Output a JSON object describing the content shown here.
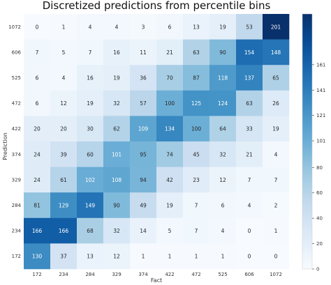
{
  "chart_data": {
    "type": "heatmap",
    "title": "Discretized predictions from percentile bins",
    "xlabel": "Fact",
    "ylabel": "Prediction",
    "x_categories": [
      "172",
      "234",
      "284",
      "329",
      "374",
      "422",
      "472",
      "525",
      "606",
      "1072"
    ],
    "y_categories": [
      "1072",
      "606",
      "525",
      "472",
      "422",
      "374",
      "329",
      "284",
      "234",
      "172"
    ],
    "values": [
      [
        0,
        1,
        4,
        4,
        3,
        6,
        13,
        19,
        53,
        201
      ],
      [
        7,
        5,
        7,
        16,
        11,
        21,
        63,
        90,
        154,
        148
      ],
      [
        6,
        4,
        16,
        19,
        36,
        70,
        87,
        118,
        137,
        65
      ],
      [
        6,
        12,
        19,
        32,
        57,
        100,
        125,
        124,
        63,
        26
      ],
      [
        20,
        20,
        30,
        62,
        109,
        134,
        100,
        64,
        33,
        19
      ],
      [
        24,
        39,
        60,
        101,
        95,
        74,
        45,
        32,
        21,
        4
      ],
      [
        24,
        61,
        102,
        108,
        94,
        42,
        23,
        12,
        7,
        7
      ],
      [
        81,
        129,
        149,
        90,
        49,
        19,
        7,
        6,
        4,
        2
      ],
      [
        166,
        166,
        68,
        32,
        14,
        5,
        7,
        4,
        0,
        1
      ],
      [
        130,
        37,
        13,
        12,
        1,
        1,
        1,
        1,
        0,
        0
      ]
    ],
    "colorbar": {
      "min": 0,
      "max": 201,
      "ticks": [
        0,
        20,
        40,
        60,
        80,
        101,
        121,
        141,
        161
      ],
      "colormap": "Blues"
    },
    "grid": false,
    "colors": {
      "low": "#f7fbff",
      "high": "#08306b"
    }
  }
}
